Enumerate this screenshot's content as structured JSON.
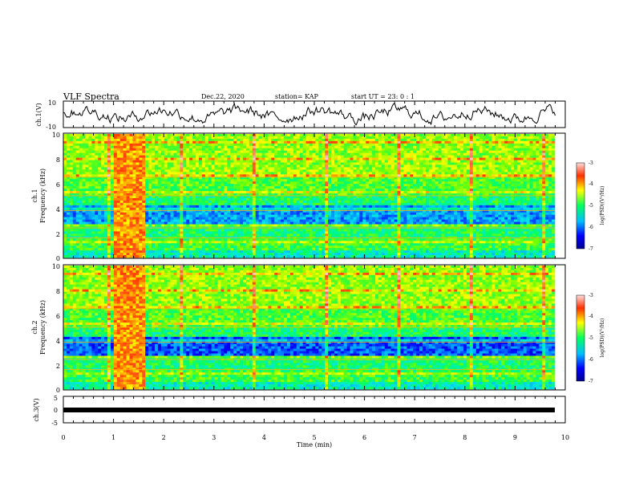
{
  "header": {
    "title": "VLF Spectra",
    "date": "Dec.22, 2020",
    "station": "station= KAP",
    "start": "start  UT =   23: 0  : 1"
  },
  "chart_data": [
    {
      "type": "line",
      "panel": "ch1-waveform",
      "ylabel": "ch.1(V)",
      "ylim": [
        -10,
        10
      ],
      "yticks": [
        "10",
        "-10"
      ],
      "series": [
        {
          "values_desc": "noisy waveform oscillating roughly between -9 and 9 V over 0-9.8 min"
        }
      ]
    },
    {
      "type": "heatmap",
      "panel": "ch1-spectrogram",
      "ylabel": "ch.1\nFrequency  (kHz)",
      "ylim": [
        0,
        10
      ],
      "yticks": [
        "0",
        "2",
        "4",
        "6",
        "8",
        "10"
      ],
      "colorbar": {
        "label": "log(PSD)(V²/Hz)",
        "range": [
          -7,
          -3
        ],
        "ticks": [
          "-3",
          "-4",
          "-5",
          "-6",
          "-7"
        ]
      },
      "burst": {
        "x_start_min": 1.0,
        "x_end_min": 1.6
      }
    },
    {
      "type": "heatmap",
      "panel": "ch2-spectrogram",
      "ylabel": "ch.2\nFrequency  (kHz)",
      "ylim": [
        0,
        10
      ],
      "yticks": [
        "0",
        "2",
        "4",
        "6",
        "8",
        "10"
      ],
      "colorbar": {
        "label": "log(PSD)(V²/Hz)",
        "range": [
          -7,
          -3
        ],
        "ticks": [
          "-3",
          "-4",
          "-5",
          "-6",
          "-7"
        ]
      },
      "burst": {
        "x_start_min": 1.0,
        "x_end_min": 1.6
      }
    },
    {
      "type": "line",
      "panel": "ch3-waveform",
      "ylabel": "ch.3(V)",
      "ylim": [
        -5,
        5
      ],
      "yticks": [
        "5",
        "0",
        "-5"
      ],
      "series": [
        {
          "values_desc": "flat near -1 V"
        }
      ]
    }
  ],
  "xaxis": {
    "label": "Time  (min)",
    "ticks": [
      "0",
      "1",
      "2",
      "3",
      "4",
      "5",
      "6",
      "7",
      "8",
      "9",
      "10"
    ],
    "xlim": [
      0,
      10
    ]
  },
  "colors": {
    "waveform": "#000000",
    "axes": "#000000"
  }
}
